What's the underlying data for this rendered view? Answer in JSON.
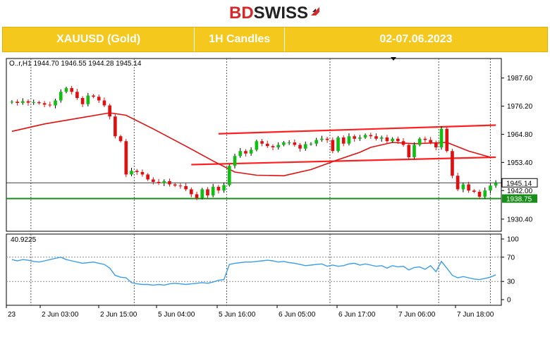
{
  "header": {
    "logo_bd": "BD",
    "logo_swiss": "SWISS",
    "symbol": "XAUUSD (Gold)",
    "timeframe": "1H Candles",
    "date_range": "02-07.06.2023"
  },
  "colors": {
    "bull": "#10c010",
    "bear": "#e01010",
    "ma_line": "#e01010",
    "channel": "#ff2020",
    "support": "#1a8c1a",
    "rsi_line": "#3b9ee6",
    "banner": "#f5c81e"
  },
  "chart_data": [
    {
      "type": "candlestick",
      "ohlc_label": "O..r,H1  1944.70 1946.55 1944.28 1945.14",
      "ylim": [
        1925.5,
        1995.5
      ],
      "y_ticks": [
        1987.6,
        1976.2,
        1964.8,
        1953.4,
        1942.0,
        1930.4
      ],
      "y_tick_labels": [
        "1987.60",
        "1976.20",
        "1964.80",
        "1953.40",
        "1942.00",
        "1930.40"
      ],
      "current_price": 1945.14,
      "current_price_label": "1945.14",
      "support_level": 1938.75,
      "support_label": "1938.75",
      "x_labels": [
        "23",
        "2 Jun 03:00",
        "2 Jun 15:00",
        "5 Jun 04:00",
        "5 Jun 16:00",
        "6 Jun 05:00",
        "6 Jun 17:00",
        "7 Jun 06:00",
        "7 Jun 18:00"
      ],
      "candles_close": [
        1978,
        1977.5,
        1978.2,
        1977.6,
        1977.8,
        1977.4,
        1976.8,
        1976.5,
        1978.5,
        1982.0,
        1983.5,
        1982.0,
        1979.5,
        1977.0,
        1980.5,
        1980.0,
        1978.5,
        1976.5,
        1972.0,
        1964.0,
        1962.0,
        1948.5,
        1950.0,
        1949.5,
        1948.5,
        1946.5,
        1945.5,
        1945.0,
        1945.8,
        1944.5,
        1944.0,
        1943.8,
        1942.5,
        1940.5,
        1939.0,
        1942.5,
        1940.0,
        1943.5,
        1942.0,
        1944.2,
        1952.0,
        1956.0,
        1958.0,
        1957.0,
        1958.5,
        1962.0,
        1961.0,
        1960.0,
        1959.5,
        1960.5,
        1961.5,
        1961.5,
        1960.5,
        1959.0,
        1960.8,
        1961.0,
        1962.5,
        1963.0,
        1962.5,
        1958.0,
        1963.5,
        1961.0,
        1964.0,
        1963.0,
        1963.5,
        1964.5,
        1964.0,
        1963.0,
        1963.5,
        1962.0,
        1963.0,
        1962.0,
        1960.5,
        1955.5,
        1960.5,
        1963.0,
        1962.5,
        1961.5,
        1959.5,
        1967.0,
        1958.0,
        1948.0,
        1942.5,
        1944.5,
        1942.0,
        1941.5,
        1939.5,
        1942.0,
        1944.0,
        1945.14
      ],
      "ma_points": [
        [
          0,
          1966.0
        ],
        [
          6,
          1969.0
        ],
        [
          14,
          1972.0
        ],
        [
          18,
          1973.5
        ],
        [
          21,
          1972.5
        ],
        [
          26,
          1967.0
        ],
        [
          32,
          1960.0
        ],
        [
          37,
          1954.0
        ],
        [
          41,
          1949.5
        ],
        [
          45,
          1948.2
        ],
        [
          50,
          1948.0
        ],
        [
          55,
          1950.5
        ],
        [
          60,
          1954.5
        ],
        [
          64,
          1957.5
        ],
        [
          66,
          1959.5
        ],
        [
          70,
          1961.5
        ],
        [
          74,
          1961.0
        ],
        [
          80,
          1961.5
        ],
        [
          84,
          1958.0
        ],
        [
          88,
          1955.5
        ]
      ],
      "channel_top": [
        [
          38,
          1965.0
        ],
        [
          89,
          1968.5
        ]
      ],
      "channel_bottom": [
        [
          33,
          1952.5
        ],
        [
          89,
          1955.5
        ]
      ],
      "rsi": {
        "label": "40.9225",
        "ylim": [
          0,
          100
        ],
        "ticks": [
          100,
          70,
          30,
          0
        ],
        "tick_labels": [
          "100",
          "70",
          "30",
          "0"
        ],
        "values": [
          66,
          64,
          66,
          65,
          63,
          62,
          64,
          66,
          68,
          70,
          66,
          64,
          62,
          60,
          61,
          62,
          60,
          58,
          52,
          40,
          37,
          36,
          28,
          26,
          25,
          25,
          24,
          25,
          24,
          26,
          27,
          26,
          25,
          26,
          27,
          28,
          27,
          29,
          32,
          33,
          58,
          60,
          61,
          62,
          62,
          63,
          64,
          65,
          64,
          62,
          63,
          61,
          60,
          58,
          56,
          57,
          58,
          59,
          55,
          57,
          55,
          56,
          59,
          60,
          57,
          59,
          57,
          55,
          56,
          52,
          56,
          54,
          55,
          49,
          53,
          54,
          50,
          56,
          46,
          63,
          52,
          40,
          36,
          38,
          36,
          34,
          33,
          35,
          37,
          40.92
        ]
      }
    }
  ]
}
